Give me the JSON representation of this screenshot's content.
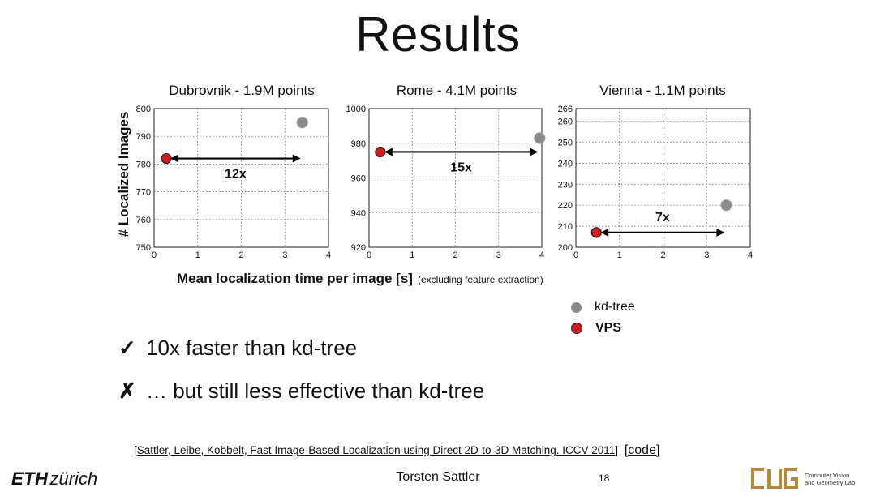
{
  "slide": {
    "title": "Results",
    "ylabel": "# Localized Images",
    "xlabel": "Mean localization time per image [s]",
    "xlabel_note": "(excluding feature extraction)",
    "legend": [
      {
        "label": "kd-tree",
        "color": "#8a8a8a"
      },
      {
        "label": "VPS",
        "color": "#d41a1a"
      }
    ],
    "bullets": [
      {
        "mark": "✓",
        "text": "10x faster than kd-tree"
      },
      {
        "mark": "✗",
        "text": "… but still less effective than kd-tree"
      }
    ],
    "citation": "[Sattler, Leibe, Kobbelt, Fast Image-Based Localization using Direct 2D-to-3D Matching. ICCV 2011]",
    "code_link": "[code]",
    "author": "Torsten Sattler",
    "page_number": "18",
    "eth_logo": {
      "eth": "ETH",
      "zurich": "zürich"
    },
    "lab_name": [
      "Computer Vision",
      "and Geometry Lab"
    ]
  },
  "chart_data": [
    {
      "type": "scatter",
      "title": "Dubrovnik - 1.9M points",
      "xlim": [
        0,
        4
      ],
      "ylim": [
        750,
        800
      ],
      "xticks": [
        0,
        1,
        2,
        3,
        4
      ],
      "yticks": [
        750,
        760,
        770,
        780,
        790,
        800
      ],
      "grid": true,
      "series": [
        {
          "name": "kd-tree",
          "x": [
            3.4
          ],
          "y": [
            795
          ]
        },
        {
          "name": "VPS",
          "x": [
            0.28
          ],
          "y": [
            782
          ]
        }
      ],
      "annotation": {
        "text": "12x",
        "x_from": 0.28,
        "x_to": 3.4,
        "y": 782
      }
    },
    {
      "type": "scatter",
      "title": "Rome - 4.1M points",
      "xlim": [
        0,
        4
      ],
      "ylim": [
        920,
        1000
      ],
      "xticks": [
        0,
        1,
        2,
        3,
        4
      ],
      "yticks": [
        920,
        940,
        960,
        980,
        1000
      ],
      "grid": true,
      "series": [
        {
          "name": "kd-tree",
          "x": [
            3.95
          ],
          "y": [
            983
          ]
        },
        {
          "name": "VPS",
          "x": [
            0.26
          ],
          "y": [
            975
          ]
        }
      ],
      "annotation": {
        "text": "15x",
        "x_from": 0.26,
        "x_to": 3.95,
        "y": 975
      }
    },
    {
      "type": "scatter",
      "title": "Vienna - 1.1M points",
      "xlim": [
        0,
        4
      ],
      "ylim": [
        200,
        266
      ],
      "xticks": [
        0,
        1,
        2,
        3,
        4
      ],
      "yticks": [
        200,
        210,
        220,
        230,
        240,
        250,
        260,
        266
      ],
      "grid": true,
      "series": [
        {
          "name": "kd-tree",
          "x": [
            3.45
          ],
          "y": [
            220
          ]
        },
        {
          "name": "VPS",
          "x": [
            0.47
          ],
          "y": [
            207
          ]
        }
      ],
      "annotation": {
        "text": "7x",
        "x_from": 0.47,
        "x_to": 3.45,
        "y": 207
      }
    }
  ]
}
